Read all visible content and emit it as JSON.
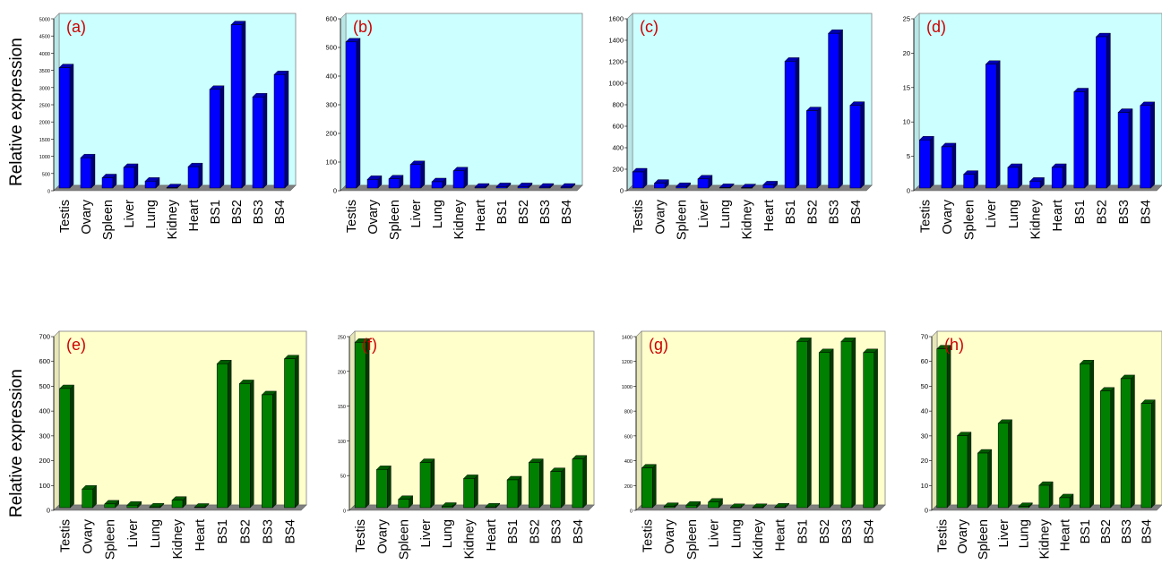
{
  "ylabel": "Relative expression",
  "colors": {
    "top_plot_bg": "#ccffff",
    "bottom_plot_bg": "#ffffcc",
    "top_bar": "#0000ff",
    "bottom_bar": "#008000",
    "panel_letter": "#cc0000",
    "floor": "#808080"
  },
  "chart_data": [
    {
      "type": "bar",
      "title": "(a)",
      "categories": [
        "Testis",
        "Ovary",
        "Spleen",
        "Liver",
        "Lung",
        "Kidney",
        "Heart",
        "BS1",
        "BS2",
        "BS3",
        "BS4"
      ],
      "values": [
        3500,
        880,
        300,
        600,
        200,
        10,
        620,
        2870,
        4750,
        2650,
        3300
      ],
      "ylim": [
        0,
        5000
      ],
      "yticks": [
        0,
        500,
        1000,
        1500,
        2000,
        2500,
        3000,
        3500,
        4000,
        4500,
        5000
      ]
    },
    {
      "type": "bar",
      "title": "(b)",
      "categories": [
        "Testis",
        "Ovary",
        "Spleen",
        "Liver",
        "Lung",
        "Kidney",
        "Heart",
        "BS1",
        "BS2",
        "BS3",
        "BS4"
      ],
      "values": [
        510,
        30,
        32,
        82,
        22,
        60,
        3,
        5,
        5,
        3,
        3
      ],
      "ylim": [
        0,
        600
      ],
      "yticks": [
        0,
        100,
        200,
        300,
        400,
        500,
        600
      ]
    },
    {
      "type": "bar",
      "title": "(c)",
      "categories": [
        "Testis",
        "Ovary",
        "Spleen",
        "Liver",
        "Lung",
        "Kidney",
        "Heart",
        "BS1",
        "BS2",
        "BS3",
        "BS4"
      ],
      "values": [
        150,
        45,
        15,
        85,
        5,
        3,
        30,
        1180,
        720,
        1440,
        770
      ],
      "ylim": [
        0,
        1600
      ],
      "yticks": [
        0,
        200,
        400,
        600,
        800,
        1000,
        1200,
        1400,
        1600
      ]
    },
    {
      "type": "bar",
      "title": "(d)",
      "categories": [
        "Testis",
        "Ovary",
        "Spleen",
        "Liver",
        "Lung",
        "Kidney",
        "Heart",
        "BS1",
        "BS2",
        "BS3",
        "BS4"
      ],
      "values": [
        7,
        6,
        2,
        18,
        3,
        1,
        3,
        14,
        22,
        11,
        12
      ],
      "ylim": [
        0,
        25
      ],
      "yticks": [
        0,
        5,
        10,
        15,
        20,
        25
      ]
    },
    {
      "type": "bar",
      "title": "(e)",
      "categories": [
        "Testis",
        "Ovary",
        "Spleen",
        "Liver",
        "Lung",
        "Kidney",
        "Heart",
        "BS1",
        "BS2",
        "BS3",
        "BS4"
      ],
      "values": [
        480,
        75,
        15,
        10,
        3,
        30,
        2,
        580,
        500,
        455,
        600
      ],
      "ylim": [
        0,
        700
      ],
      "yticks": [
        0,
        100,
        200,
        300,
        400,
        500,
        600,
        700
      ]
    },
    {
      "type": "bar",
      "title": "(f)",
      "categories": [
        "Testis",
        "Ovary",
        "Spleen",
        "Liver",
        "Lung",
        "Kidney",
        "Heart",
        "BS1",
        "BS2",
        "BS3",
        "BS4"
      ],
      "values": [
        238,
        55,
        12,
        65,
        2,
        42,
        1,
        40,
        65,
        52,
        70
      ],
      "ylim": [
        0,
        250
      ],
      "yticks": [
        0,
        50,
        100,
        150,
        200,
        250
      ]
    },
    {
      "type": "bar",
      "title": "(g)",
      "categories": [
        "Testis",
        "Ovary",
        "Spleen",
        "Liver",
        "Lung",
        "Kidney",
        "Heart",
        "BS1",
        "BS2",
        "BS3",
        "BS4"
      ],
      "values": [
        320,
        10,
        20,
        45,
        2,
        2,
        5,
        1340,
        1250,
        1340,
        1250
      ],
      "ylim": [
        0,
        1400
      ],
      "yticks": [
        0,
        200,
        400,
        600,
        800,
        1000,
        1200,
        1400
      ]
    },
    {
      "type": "bar",
      "title": "(h)",
      "categories": [
        "Testis",
        "Ovary",
        "Spleen",
        "Liver",
        "Lung",
        "Kidney",
        "Heart",
        "BS1",
        "BS2",
        "BS3",
        "BS4"
      ],
      "values": [
        64,
        29,
        22,
        34,
        0.5,
        9,
        4,
        58,
        47,
        52,
        42
      ],
      "ylim": [
        0,
        70
      ],
      "yticks": [
        0,
        10,
        20,
        30,
        40,
        50,
        60,
        70
      ]
    }
  ]
}
